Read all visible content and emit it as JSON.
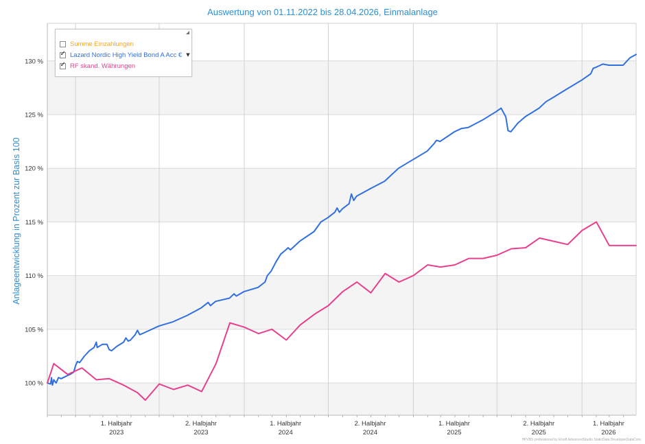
{
  "chart_data": {
    "type": "line",
    "title": "Auswertung von 01.11.2022 bis 28.04.2026, Einmalanlage",
    "ylabel": "Anlageentwicklung  in Prozent zur Basis 100",
    "xlabel": "",
    "x_range": [
      "2022-11-01",
      "2026-04-28"
    ],
    "ylim": [
      97,
      133.5
    ],
    "y_ticks": [
      100,
      105,
      110,
      115,
      120,
      125,
      130
    ],
    "y_tick_labels": [
      "100 %",
      "105 %",
      "110 %",
      "115 %",
      "120 %",
      "125 %",
      "130 %"
    ],
    "x_ticks": [
      {
        "line1": "1. Halbjahr",
        "line2": "2023"
      },
      {
        "line1": "2. Halbjahr",
        "line2": "2023"
      },
      {
        "line1": "1. Halbjahr",
        "line2": "2024"
      },
      {
        "line1": "2. Halbjahr",
        "line2": "2024"
      },
      {
        "line1": "1. Halbjahr",
        "line2": "2025"
      },
      {
        "line1": "2. Halbjahr",
        "line2": "2025"
      },
      {
        "line1": "1. Halbjahr",
        "line2": "2026"
      }
    ],
    "grid": true,
    "legend_position": "top-left",
    "series": [
      {
        "name": "Summe Einzahlungen",
        "color": "#f5a623",
        "checked": false,
        "values": []
      },
      {
        "name": "Lazard Nordic High Yield Bond A Acc €",
        "color": "#2f6fdf",
        "checked": true,
        "points": [
          [
            "2022-11-01",
            100.0
          ],
          [
            "2022-11-08",
            99.9
          ],
          [
            "2022-11-10",
            100.5
          ],
          [
            "2022-11-12",
            99.8
          ],
          [
            "2022-11-15",
            100.3
          ],
          [
            "2022-11-20",
            100.0
          ],
          [
            "2022-11-25",
            100.5
          ],
          [
            "2022-12-01",
            100.4
          ],
          [
            "2022-12-10",
            100.6
          ],
          [
            "2022-12-20",
            100.8
          ],
          [
            "2022-12-28",
            101.0
          ],
          [
            "2023-01-01",
            101.6
          ],
          [
            "2023-01-05",
            102.0
          ],
          [
            "2023-01-10",
            101.9
          ],
          [
            "2023-01-20",
            102.5
          ],
          [
            "2023-01-31",
            103.0
          ],
          [
            "2023-02-10",
            103.3
          ],
          [
            "2023-02-15",
            103.8
          ],
          [
            "2023-02-17",
            103.3
          ],
          [
            "2023-02-28",
            103.6
          ],
          [
            "2023-03-10",
            103.6
          ],
          [
            "2023-03-15",
            103.1
          ],
          [
            "2023-03-20",
            103.0
          ],
          [
            "2023-03-31",
            103.4
          ],
          [
            "2023-04-15",
            103.8
          ],
          [
            "2023-04-20",
            104.2
          ],
          [
            "2023-04-25",
            103.9
          ],
          [
            "2023-04-30",
            104.0
          ],
          [
            "2023-05-10",
            104.5
          ],
          [
            "2023-05-15",
            104.9
          ],
          [
            "2023-05-20",
            104.5
          ],
          [
            "2023-05-31",
            104.7
          ],
          [
            "2023-06-30",
            105.3
          ],
          [
            "2023-07-31",
            105.7
          ],
          [
            "2023-08-31",
            106.3
          ],
          [
            "2023-09-30",
            107.0
          ],
          [
            "2023-10-15",
            107.5
          ],
          [
            "2023-10-20",
            107.2
          ],
          [
            "2023-10-31",
            107.6
          ],
          [
            "2023-11-30",
            107.9
          ],
          [
            "2023-12-10",
            108.3
          ],
          [
            "2023-12-15",
            108.1
          ],
          [
            "2023-12-31",
            108.5
          ],
          [
            "2024-01-31",
            108.9
          ],
          [
            "2024-02-15",
            109.4
          ],
          [
            "2024-02-20",
            110.0
          ],
          [
            "2024-02-28",
            110.4
          ],
          [
            "2024-03-10",
            111.3
          ],
          [
            "2024-03-20",
            112.0
          ],
          [
            "2024-03-31",
            112.4
          ],
          [
            "2024-04-05",
            112.6
          ],
          [
            "2024-04-10",
            112.4
          ],
          [
            "2024-04-30",
            113.2
          ],
          [
            "2024-05-31",
            114.1
          ],
          [
            "2024-06-15",
            115.0
          ],
          [
            "2024-06-30",
            115.4
          ],
          [
            "2024-07-15",
            115.9
          ],
          [
            "2024-07-20",
            116.3
          ],
          [
            "2024-07-25",
            115.9
          ],
          [
            "2024-07-31",
            116.2
          ],
          [
            "2024-08-15",
            116.7
          ],
          [
            "2024-08-20",
            117.6
          ],
          [
            "2024-08-25",
            117.0
          ],
          [
            "2024-08-31",
            117.4
          ],
          [
            "2024-09-30",
            118.1
          ],
          [
            "2024-10-31",
            118.8
          ],
          [
            "2024-11-30",
            120.0
          ],
          [
            "2024-12-31",
            120.8
          ],
          [
            "2025-01-31",
            121.6
          ],
          [
            "2025-02-15",
            122.3
          ],
          [
            "2025-02-20",
            122.6
          ],
          [
            "2025-02-28",
            122.5
          ],
          [
            "2025-03-31",
            123.4
          ],
          [
            "2025-04-15",
            123.7
          ],
          [
            "2025-04-30",
            123.8
          ],
          [
            "2025-05-31",
            124.5
          ],
          [
            "2025-06-30",
            125.3
          ],
          [
            "2025-07-10",
            125.6
          ],
          [
            "2025-07-20",
            124.8
          ],
          [
            "2025-07-25",
            123.5
          ],
          [
            "2025-07-31",
            123.4
          ],
          [
            "2025-08-15",
            124.2
          ],
          [
            "2025-08-31",
            124.8
          ],
          [
            "2025-09-30",
            125.6
          ],
          [
            "2025-10-15",
            126.2
          ],
          [
            "2025-10-31",
            126.6
          ],
          [
            "2025-11-30",
            127.4
          ],
          [
            "2025-12-31",
            128.2
          ],
          [
            "2026-01-20",
            128.8
          ],
          [
            "2026-01-25",
            129.3
          ],
          [
            "2026-01-31",
            129.4
          ],
          [
            "2026-02-15",
            129.7
          ],
          [
            "2026-02-28",
            129.6
          ],
          [
            "2026-03-31",
            129.6
          ],
          [
            "2026-04-15",
            130.3
          ],
          [
            "2026-04-28",
            130.6
          ]
        ]
      },
      {
        "name": "RF skand. Währungen",
        "color": "#e83e8c",
        "checked": true,
        "points": [
          [
            "2022-11-01",
            100.0
          ],
          [
            "2022-11-15",
            101.8
          ],
          [
            "2022-12-15",
            100.8
          ],
          [
            "2023-01-15",
            101.4
          ],
          [
            "2023-02-15",
            100.3
          ],
          [
            "2023-03-15",
            100.4
          ],
          [
            "2023-04-15",
            99.8
          ],
          [
            "2023-05-15",
            99.1
          ],
          [
            "2023-06-01",
            98.4
          ],
          [
            "2023-07-01",
            99.9
          ],
          [
            "2023-08-01",
            99.4
          ],
          [
            "2023-09-01",
            99.8
          ],
          [
            "2023-10-01",
            99.2
          ],
          [
            "2023-11-01",
            101.8
          ],
          [
            "2023-12-01",
            105.6
          ],
          [
            "2024-01-01",
            105.2
          ],
          [
            "2024-02-01",
            104.6
          ],
          [
            "2024-03-01",
            105.0
          ],
          [
            "2024-04-01",
            104.0
          ],
          [
            "2024-05-01",
            105.4
          ],
          [
            "2024-06-01",
            106.4
          ],
          [
            "2024-07-01",
            107.2
          ],
          [
            "2024-08-01",
            108.5
          ],
          [
            "2024-09-01",
            109.4
          ],
          [
            "2024-10-01",
            108.4
          ],
          [
            "2024-11-01",
            110.2
          ],
          [
            "2024-12-01",
            109.4
          ],
          [
            "2025-01-01",
            110.0
          ],
          [
            "2025-02-01",
            111.0
          ],
          [
            "2025-03-01",
            110.8
          ],
          [
            "2025-04-01",
            111.0
          ],
          [
            "2025-05-01",
            111.6
          ],
          [
            "2025-06-01",
            111.6
          ],
          [
            "2025-07-01",
            111.9
          ],
          [
            "2025-08-01",
            112.5
          ],
          [
            "2025-09-01",
            112.6
          ],
          [
            "2025-10-01",
            113.5
          ],
          [
            "2025-11-01",
            113.2
          ],
          [
            "2025-12-01",
            112.9
          ],
          [
            "2026-01-01",
            114.2
          ],
          [
            "2026-02-01",
            115.0
          ],
          [
            "2026-03-01",
            112.8
          ],
          [
            "2026-04-01",
            112.8
          ],
          [
            "2026-04-28",
            112.8
          ]
        ]
      }
    ]
  },
  "footer": "HPVBS professional by Elsoft AdvancedStudio StaticData DeveloperDataCore"
}
